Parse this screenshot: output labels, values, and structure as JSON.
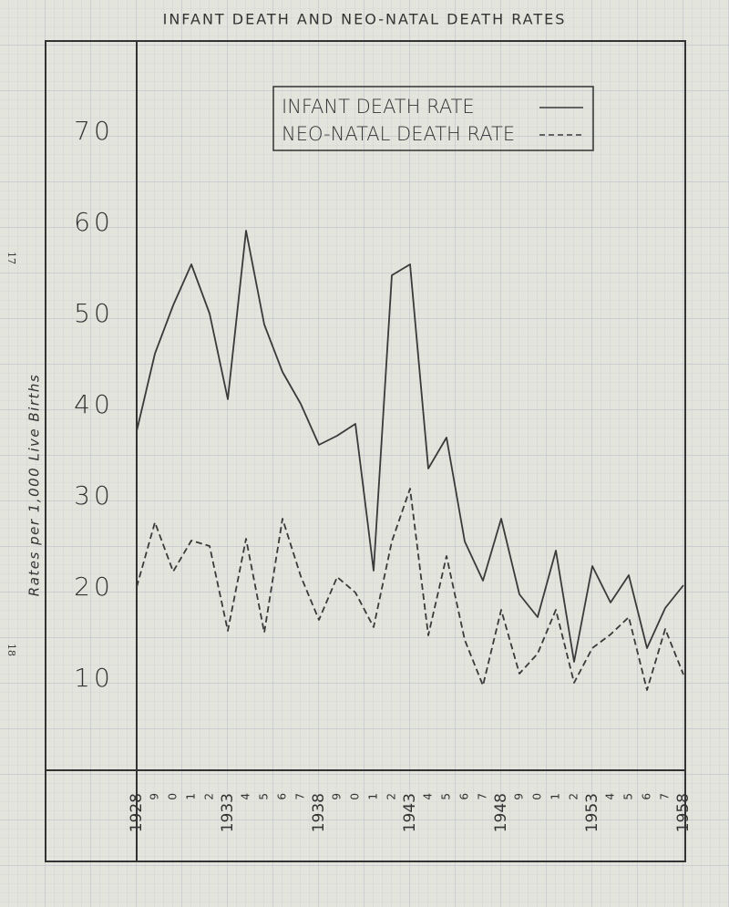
{
  "chart_data": {
    "type": "line",
    "title": "INFANT DEATH AND NEO-NATAL DEATH RATES",
    "y_label": "Rates per 1,000 Live Births",
    "annotations": [
      "17",
      "18"
    ],
    "categories": [
      "1928",
      "9",
      "0",
      "1",
      "2",
      "1933",
      "4",
      "5",
      "6",
      "7",
      "1938",
      "9",
      "0",
      "1",
      "2",
      "1943",
      "4",
      "5",
      "6",
      "7",
      "1948",
      "9",
      "0",
      "1",
      "2",
      "1953",
      "4",
      "5",
      "6",
      "7",
      "1958"
    ],
    "series": [
      {
        "name": "INFANT DEATH RATE",
        "color": "#3a3a3a",
        "style": "solid",
        "values": [
          37.2,
          45.7,
          51,
          55.5,
          50.1,
          40.7,
          59.2,
          48.9,
          43.7,
          40.2,
          35.7,
          36.7,
          38,
          21.9,
          54.3,
          55.5,
          33.1,
          36.5,
          25.1,
          20.8,
          27.6,
          19.3,
          16.8,
          24.1,
          11.9,
          22.4,
          18.4,
          21.4,
          13.4,
          17.8,
          20.3
        ]
      },
      {
        "name": "NEO-NATAL DEATH RATE",
        "color": "#3a3a3a",
        "style": "dashed",
        "values": [
          20.1,
          27.2,
          21.8,
          25.2,
          24.6,
          15.3,
          25.4,
          15.1,
          27.6,
          21.3,
          16.5,
          21.2,
          19.5,
          15.7,
          25.1,
          30.9,
          14.8,
          23.5,
          14.3,
          9.3,
          17.6,
          10.6,
          12.8,
          17.6,
          9.6,
          13.4,
          14.9,
          16.8,
          8.8,
          15.5,
          10.5
        ]
      }
    ],
    "ylim": [
      0,
      80
    ],
    "yticks": [
      10,
      20,
      30,
      40,
      50,
      60,
      70
    ],
    "grid": false
  }
}
